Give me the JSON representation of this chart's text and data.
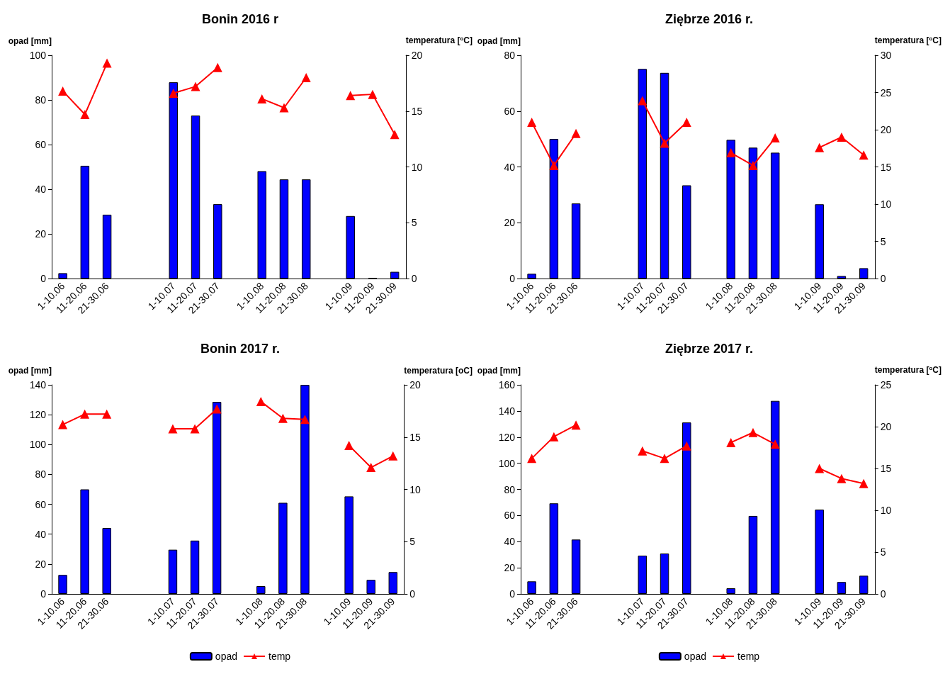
{
  "chart_data": [
    {
      "type": "bar",
      "title": "Bonin 2016 r",
      "ylabel": "opad [mm]",
      "y2label": "temperatura [$^{o}$C]",
      "categories": [
        "1-10.06",
        "11-20.06",
        "21-30.06",
        null,
        null,
        "1-10.07",
        "11-20.07",
        "21-30.07",
        null,
        "1-10.08",
        "11-20.08",
        "21-30.08",
        null,
        "1-10.09",
        "11-20.09",
        "21-30.09"
      ],
      "series": [
        {
          "color": "#0000ff",
          "values": [
            2.4,
            50.5,
            28.6,
            null,
            null,
            87.9,
            73,
            33.3,
            null,
            48.1,
            44.4,
            44.4,
            null,
            28,
            0.3,
            3
          ]
        },
        {
          "type": "line",
          "axis": "y2",
          "color": "#ff0000",
          "values": [
            16.8,
            14.7,
            19.3,
            null,
            null,
            16.6,
            17.2,
            18.9,
            null,
            16.1,
            15.3,
            18,
            null,
            16.4,
            16.5,
            12.9
          ]
        }
      ],
      "ylim": [
        0,
        100
      ],
      "yticks": [
        0,
        20,
        40,
        60,
        80,
        100
      ],
      "y2lim": [
        0,
        20
      ],
      "y2ticks": [
        0,
        5,
        10,
        15,
        20
      ],
      "marker": "triangle",
      "grid": false,
      "legend": false
    },
    {
      "type": "bar",
      "title": "Ziębrze 2016 r.",
      "ylabel": "opad [mm]",
      "y2label": "temperatura [$^{o}$C]",
      "categories": [
        "1-10.06",
        "11-20.06",
        "21-30.06",
        null,
        null,
        "1-10.07",
        "11-20.07",
        "21-30.07",
        null,
        "1-10.08",
        "11-20.08",
        "21-30.08",
        null,
        "1-10.09",
        "11-20.09",
        "21-30.09"
      ],
      "series": [
        {
          "color": "#0000ff",
          "values": [
            1.7,
            50,
            26.9,
            null,
            null,
            75.1,
            73.7,
            33.4,
            null,
            49.7,
            46.9,
            45.1,
            null,
            26.6,
            0.9,
            3.7
          ]
        },
        {
          "type": "line",
          "axis": "y2",
          "color": "#ff0000",
          "values": [
            21,
            15.2,
            19.5,
            null,
            null,
            23.9,
            18.2,
            21,
            null,
            16.9,
            15.2,
            18.9,
            null,
            17.6,
            19,
            16.6
          ]
        }
      ],
      "ylim": [
        0,
        80
      ],
      "yticks": [
        0,
        20,
        40,
        60,
        80
      ],
      "y2lim": [
        0,
        30
      ],
      "y2ticks": [
        0,
        5,
        10,
        15,
        20,
        25,
        30
      ],
      "marker": "triangle",
      "grid": false,
      "legend": false
    },
    {
      "type": "bar",
      "title": "Bonin 2017 r.",
      "ylabel": "opad [mm]",
      "y2label": "temperatura [oC]",
      "categories": [
        "1-10.06",
        "11-20.06",
        "21-30.06",
        null,
        null,
        "1-10.07",
        "11-20.07",
        "21-30.07",
        null,
        "1-10.08",
        "11-20.08",
        "21-30.08",
        null,
        "1-10.09",
        "11-20.09",
        "21-30.09"
      ],
      "series": [
        {
          "name": "opad",
          "color": "#0000ff",
          "values": [
            12.7,
            70,
            44.1,
            null,
            null,
            29.6,
            35.7,
            128.6,
            null,
            5.2,
            61,
            140,
            null,
            65.3,
            9.4,
            14.6
          ]
        },
        {
          "name": "temp",
          "type": "line",
          "axis": "y2",
          "color": "#ff0000",
          "values": [
            16.2,
            17.2,
            17.2,
            null,
            null,
            15.8,
            15.8,
            17.7,
            null,
            18.4,
            16.8,
            16.7,
            null,
            14.2,
            12.1,
            13.2
          ]
        }
      ],
      "ylim": [
        0,
        140
      ],
      "yticks": [
        0,
        20,
        40,
        60,
        80,
        100,
        120,
        140
      ],
      "y2lim": [
        0,
        20
      ],
      "y2ticks": [
        0,
        5,
        10,
        15,
        20
      ],
      "marker": "triangle",
      "grid": false,
      "legend": "bottom"
    },
    {
      "type": "bar",
      "title": "Ziębrze 2017 r.",
      "ylabel": "opad [mm]",
      "y2label": "temperatura [$^{o}$C]",
      "categories": [
        "1-10.06",
        "11-20.06",
        "21-30.06",
        null,
        null,
        "1-10.07",
        "11-20.07",
        "21-30.07",
        null,
        "1-10.08",
        "11-20.08",
        "21-30.08",
        null,
        "1-10.09",
        "11-20.09",
        "21-30.09"
      ],
      "series": [
        {
          "name": "opad",
          "color": "#0000ff",
          "values": [
            9.6,
            69.3,
            41.6,
            null,
            null,
            29.3,
            30.9,
            131.2,
            null,
            4.3,
            59.7,
            147.7,
            null,
            64.5,
            9.1,
            13.9
          ]
        },
        {
          "name": "temp",
          "type": "line",
          "axis": "y2",
          "color": "#ff0000",
          "values": [
            16.2,
            18.8,
            20.2,
            null,
            null,
            17.1,
            16.2,
            17.7,
            null,
            18.1,
            19.3,
            17.9,
            null,
            15,
            13.8,
            13.2
          ]
        }
      ],
      "ylim": [
        0,
        160
      ],
      "yticks": [
        0,
        20,
        40,
        60,
        80,
        100,
        120,
        140,
        160
      ],
      "y2lim": [
        0,
        25
      ],
      "y2ticks": [
        0,
        5,
        10,
        15,
        20,
        25
      ],
      "marker": "triangle",
      "grid": false,
      "legend": "bottom"
    }
  ]
}
